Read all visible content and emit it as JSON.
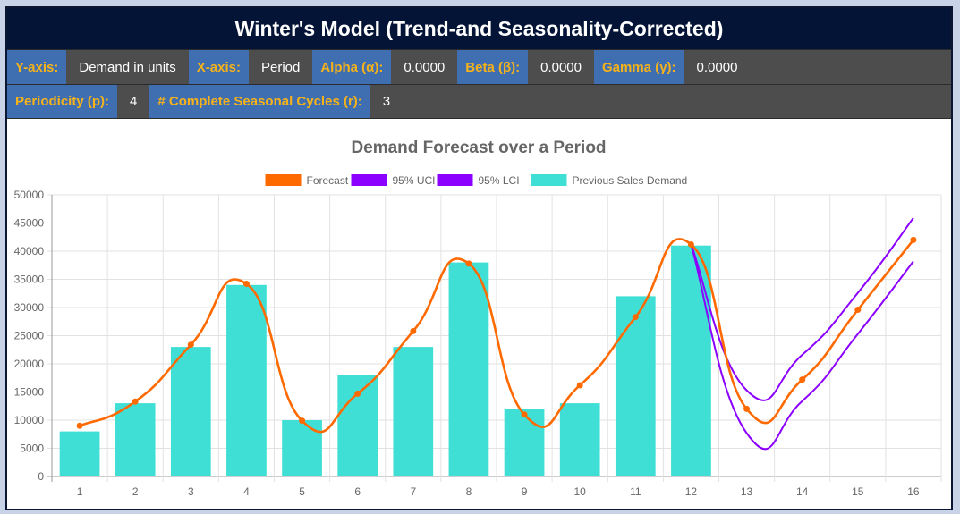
{
  "header": {
    "title": "Winter's Model (Trend-and Seasonality-Corrected)"
  },
  "params": {
    "yaxis_label": "Y-axis:",
    "yaxis_value": "Demand in units",
    "xaxis_label": "X-axis:",
    "xaxis_value": "Period",
    "alpha_label": "Alpha (α):",
    "alpha_value": "0.0000",
    "beta_label": "Beta (β):",
    "beta_value": "0.0000",
    "gamma_label": "Gamma (γ):",
    "gamma_value": "0.0000",
    "periodicity_label": "Periodicity (p):",
    "periodicity_value": "4",
    "cycles_label": "# Complete Seasonal Cycles (r):",
    "cycles_value": "3"
  },
  "chart_data": {
    "type": "bar",
    "title": "Demand Forecast over a Period",
    "categories": [
      "1",
      "2",
      "3",
      "4",
      "5",
      "6",
      "7",
      "8",
      "9",
      "10",
      "11",
      "12",
      "13",
      "14",
      "15",
      "16"
    ],
    "ylim": [
      0,
      50000
    ],
    "yticks": [
      "0",
      "5000",
      "10000",
      "15000",
      "20000",
      "25000",
      "30000",
      "35000",
      "40000",
      "45000",
      "50000"
    ],
    "grid": true,
    "legend_position": "top",
    "series": [
      {
        "name": "Forecast",
        "kind": "line",
        "color": "#ff6a00",
        "values": [
          9000,
          13300,
          23400,
          34200,
          9900,
          14700,
          25800,
          37800,
          11000,
          16200,
          28300,
          41200,
          12000,
          17200,
          29600,
          42000
        ]
      },
      {
        "name": "95% UCI",
        "kind": "line",
        "color": "#8b00ff",
        "values": [
          null,
          null,
          null,
          null,
          null,
          null,
          null,
          null,
          null,
          null,
          null,
          41200,
          15300,
          21600,
          32600,
          45900
        ]
      },
      {
        "name": "95% LCI",
        "kind": "line",
        "color": "#8b00ff",
        "values": [
          null,
          null,
          null,
          null,
          null,
          null,
          null,
          null,
          null,
          null,
          null,
          41200,
          7700,
          13400,
          25300,
          38200
        ]
      },
      {
        "name": "Previous Sales Demand",
        "kind": "bar",
        "color": "#40dfd6",
        "values": [
          8000,
          13000,
          23000,
          34000,
          10000,
          18000,
          23000,
          38000,
          12000,
          13000,
          32000,
          41000,
          null,
          null,
          null,
          null
        ]
      }
    ]
  }
}
